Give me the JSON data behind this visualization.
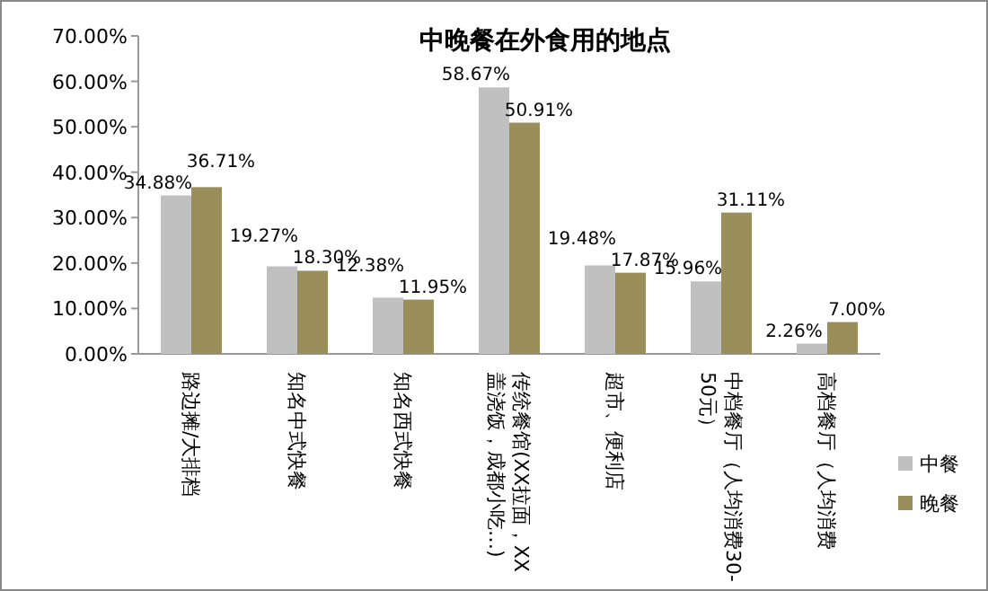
{
  "chart_data": {
    "type": "bar",
    "title": "中晚餐在外食用的地点",
    "categories": [
      "路边摊/大排档",
      "知名中式快餐",
      "知名西式快餐",
      "传统餐馆(XX拉面，XX盖浇饭，成都小吃…)",
      "超市、便利店",
      "中档餐厅（人均消费30-50元）",
      "高档餐厅（人均消费"
    ],
    "series": [
      {
        "name": "中餐",
        "color": "#c0c0c0",
        "values": [
          34.88,
          19.27,
          12.38,
          58.67,
          19.48,
          15.96,
          2.26
        ],
        "value_labels": [
          "34.88%",
          "19.27%",
          "12.38%",
          "58.67%",
          "19.48%",
          "15.96%",
          "2.26%"
        ]
      },
      {
        "name": "晚餐",
        "color": "#9a8f5a",
        "values": [
          36.71,
          18.3,
          11.95,
          50.91,
          17.87,
          31.11,
          7.0
        ],
        "value_labels": [
          "36.71%",
          "18.30%",
          "11.95%",
          "50.91%",
          "17.87%",
          "31.11%",
          "7.00%"
        ]
      }
    ],
    "ylim": [
      0,
      70
    ],
    "yticks": [
      {
        "value": 0,
        "label": "0.00%"
      },
      {
        "value": 10,
        "label": "10.00%"
      },
      {
        "value": 20,
        "label": "20.00%"
      },
      {
        "value": 30,
        "label": "30.00%"
      },
      {
        "value": 40,
        "label": "40.00%"
      },
      {
        "value": 50,
        "label": "50.00%"
      },
      {
        "value": 60,
        "label": "60.00%"
      },
      {
        "value": 70,
        "label": "70.00%"
      }
    ],
    "legend": "right",
    "grid": false
  }
}
